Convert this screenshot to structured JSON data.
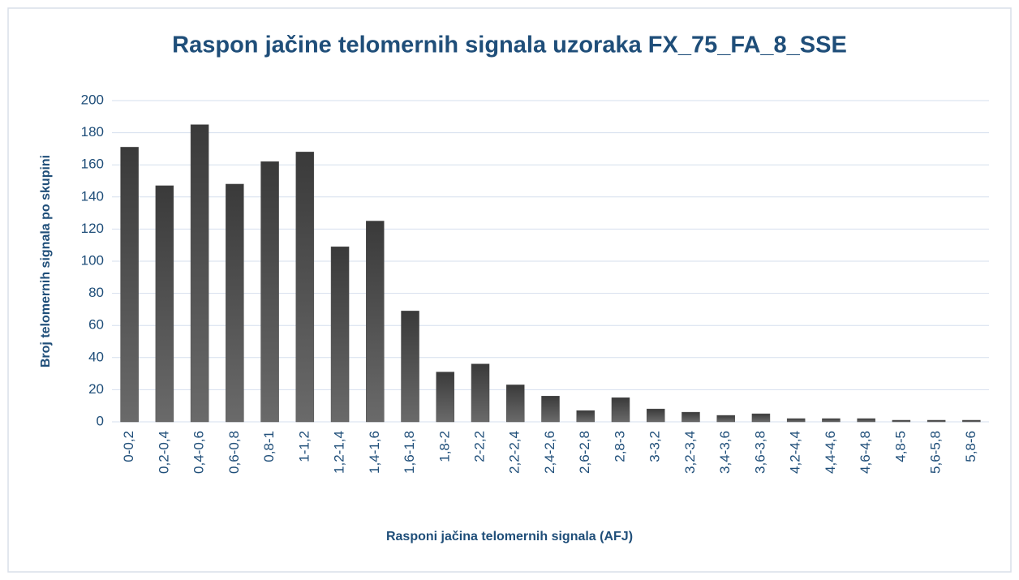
{
  "chart_data": {
    "type": "bar",
    "title": "Raspon jačine telomernih signala  uzoraka FX_75_FA_8_SSE",
    "x_label": "Rasponi jačina telomernih signala (AFJ)",
    "y_label": "Broj telomernih signala po skupini",
    "categories": [
      "0-0,2",
      "0,2-0,4",
      "0,4-0,6",
      "0,6-0,8",
      "0,8-1",
      "1-1,2",
      "1,2-1,4",
      "1,4-1,6",
      "1,6-1,8",
      "1,8-2",
      "2-2,2",
      "2,2-2,4",
      "2,4-2,6",
      "2,6-2,8",
      "2,8-3",
      "3-3,2",
      "3,2-3,4",
      "3,4-3,6",
      "3,6-3,8",
      "4,2-4,4",
      "4,4-4,6",
      "4,6-4,8",
      "4,8-5",
      "5,6-5,8",
      "5,8-6"
    ],
    "values": [
      171,
      147,
      185,
      148,
      162,
      168,
      109,
      125,
      69,
      31,
      36,
      23,
      16,
      7,
      15,
      8,
      6,
      4,
      5,
      2,
      2,
      2,
      1,
      1,
      1
    ],
    "color": "#4d4d4d",
    "ylim": [
      0,
      200
    ],
    "yticks": [
      0,
      20,
      40,
      60,
      80,
      100,
      120,
      140,
      160,
      180,
      200
    ],
    "grid": true
  }
}
